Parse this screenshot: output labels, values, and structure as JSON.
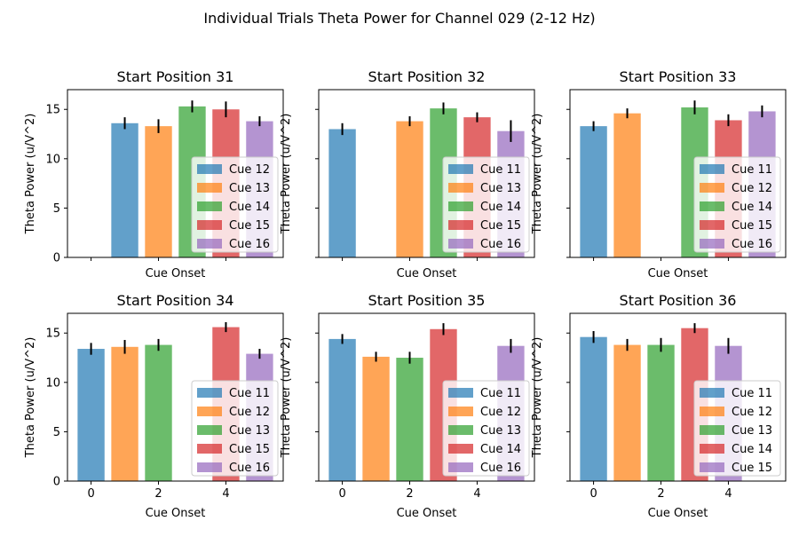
{
  "figure": {
    "suptitle": "Individual Trials Theta Power for Channel 029 (2-12 Hz)"
  },
  "chart_data": [
    {
      "type": "bar",
      "title": "Start Position 31",
      "xlabel": "Cue Onset",
      "ylabel": "Theta Power (u/V^2)",
      "x_tick_labels_shown": false,
      "y_tick_labels_shown": true,
      "ylim": [
        0,
        17
      ],
      "xlim": [
        -0.7,
        5.7
      ],
      "yticks": [
        0,
        5,
        10,
        15
      ],
      "xticks": [
        0,
        2,
        4
      ],
      "legend_position": "lower right",
      "series": [
        {
          "name": "Cue 12",
          "color": "#1f77b4",
          "x": 1,
          "value": 13.6,
          "error": 0.6
        },
        {
          "name": "Cue 13",
          "color": "#ff7f0e",
          "x": 2,
          "value": 13.3,
          "error": 0.7
        },
        {
          "name": "Cue 14",
          "color": "#2ca02c",
          "x": 3,
          "value": 15.3,
          "error": 0.6
        },
        {
          "name": "Cue 15",
          "color": "#d62728",
          "x": 4,
          "value": 15.0,
          "error": 0.8
        },
        {
          "name": "Cue 16",
          "color": "#9467bd",
          "x": 5,
          "value": 13.8,
          "error": 0.5
        }
      ]
    },
    {
      "type": "bar",
      "title": "Start Position 32",
      "xlabel": "Cue Onset",
      "ylabel": "Theta Power (u/V^2)",
      "x_tick_labels_shown": false,
      "y_tick_labels_shown": false,
      "ylim": [
        0,
        17
      ],
      "xlim": [
        -0.7,
        5.7
      ],
      "yticks": [
        0,
        5,
        10,
        15
      ],
      "xticks": [
        0,
        2,
        4
      ],
      "legend_position": "lower right",
      "series": [
        {
          "name": "Cue 11",
          "color": "#1f77b4",
          "x": 0,
          "value": 13.0,
          "error": 0.6
        },
        {
          "name": "Cue 13",
          "color": "#ff7f0e",
          "x": 2,
          "value": 13.8,
          "error": 0.5
        },
        {
          "name": "Cue 14",
          "color": "#2ca02c",
          "x": 3,
          "value": 15.1,
          "error": 0.6
        },
        {
          "name": "Cue 15",
          "color": "#d62728",
          "x": 4,
          "value": 14.2,
          "error": 0.5
        },
        {
          "name": "Cue 16",
          "color": "#9467bd",
          "x": 5,
          "value": 12.8,
          "error": 1.1
        }
      ]
    },
    {
      "type": "bar",
      "title": "Start Position 33",
      "xlabel": "Cue Onset",
      "ylabel": "Theta Power (u/V^2)",
      "x_tick_labels_shown": false,
      "y_tick_labels_shown": false,
      "ylim": [
        0,
        17
      ],
      "xlim": [
        -0.7,
        5.7
      ],
      "yticks": [
        0,
        5,
        10,
        15
      ],
      "xticks": [
        0,
        2,
        4
      ],
      "legend_position": "lower right",
      "series": [
        {
          "name": "Cue 11",
          "color": "#1f77b4",
          "x": 0,
          "value": 13.3,
          "error": 0.5
        },
        {
          "name": "Cue 12",
          "color": "#ff7f0e",
          "x": 1,
          "value": 14.6,
          "error": 0.5
        },
        {
          "name": "Cue 14",
          "color": "#2ca02c",
          "x": 3,
          "value": 15.2,
          "error": 0.7
        },
        {
          "name": "Cue 15",
          "color": "#d62728",
          "x": 4,
          "value": 13.9,
          "error": 0.6
        },
        {
          "name": "Cue 16",
          "color": "#9467bd",
          "x": 5,
          "value": 14.8,
          "error": 0.6
        }
      ]
    },
    {
      "type": "bar",
      "title": "Start Position 34",
      "xlabel": "Cue Onset",
      "ylabel": "Theta Power (u/V^2)",
      "x_tick_labels_shown": true,
      "y_tick_labels_shown": true,
      "ylim": [
        0,
        17
      ],
      "xlim": [
        -0.7,
        5.7
      ],
      "yticks": [
        0,
        5,
        10,
        15
      ],
      "xticks": [
        0,
        2,
        4
      ],
      "legend_position": "lower right",
      "series": [
        {
          "name": "Cue 11",
          "color": "#1f77b4",
          "x": 0,
          "value": 13.4,
          "error": 0.6
        },
        {
          "name": "Cue 12",
          "color": "#ff7f0e",
          "x": 1,
          "value": 13.6,
          "error": 0.7
        },
        {
          "name": "Cue 13",
          "color": "#2ca02c",
          "x": 2,
          "value": 13.8,
          "error": 0.6
        },
        {
          "name": "Cue 15",
          "color": "#d62728",
          "x": 4,
          "value": 15.6,
          "error": 0.5
        },
        {
          "name": "Cue 16",
          "color": "#9467bd",
          "x": 5,
          "value": 12.9,
          "error": 0.5
        }
      ]
    },
    {
      "type": "bar",
      "title": "Start Position 35",
      "xlabel": "Cue Onset",
      "ylabel": "Theta Power (u/V^2)",
      "x_tick_labels_shown": true,
      "y_tick_labels_shown": false,
      "ylim": [
        0,
        17
      ],
      "xlim": [
        -0.7,
        5.7
      ],
      "yticks": [
        0,
        5,
        10,
        15
      ],
      "xticks": [
        0,
        2,
        4
      ],
      "legend_position": "lower right",
      "series": [
        {
          "name": "Cue 11",
          "color": "#1f77b4",
          "x": 0,
          "value": 14.4,
          "error": 0.5
        },
        {
          "name": "Cue 12",
          "color": "#ff7f0e",
          "x": 1,
          "value": 12.6,
          "error": 0.5
        },
        {
          "name": "Cue 13",
          "color": "#2ca02c",
          "x": 2,
          "value": 12.5,
          "error": 0.6
        },
        {
          "name": "Cue 14",
          "color": "#d62728",
          "x": 3,
          "value": 15.4,
          "error": 0.6
        },
        {
          "name": "Cue 16",
          "color": "#9467bd",
          "x": 5,
          "value": 13.7,
          "error": 0.7
        }
      ]
    },
    {
      "type": "bar",
      "title": "Start Position 36",
      "xlabel": "Cue Onset",
      "ylabel": "Theta Power (u/V^2)",
      "x_tick_labels_shown": true,
      "y_tick_labels_shown": false,
      "ylim": [
        0,
        17
      ],
      "xlim": [
        -0.7,
        5.7
      ],
      "yticks": [
        0,
        5,
        10,
        15
      ],
      "xticks": [
        0,
        2,
        4
      ],
      "legend_position": "lower right",
      "series": [
        {
          "name": "Cue 11",
          "color": "#1f77b4",
          "x": 0,
          "value": 14.6,
          "error": 0.6
        },
        {
          "name": "Cue 12",
          "color": "#ff7f0e",
          "x": 1,
          "value": 13.8,
          "error": 0.6
        },
        {
          "name": "Cue 13",
          "color": "#2ca02c",
          "x": 2,
          "value": 13.8,
          "error": 0.7
        },
        {
          "name": "Cue 14",
          "color": "#d62728",
          "x": 3,
          "value": 15.5,
          "error": 0.5
        },
        {
          "name": "Cue 15",
          "color": "#9467bd",
          "x": 4,
          "value": 13.7,
          "error": 0.8
        }
      ]
    }
  ]
}
